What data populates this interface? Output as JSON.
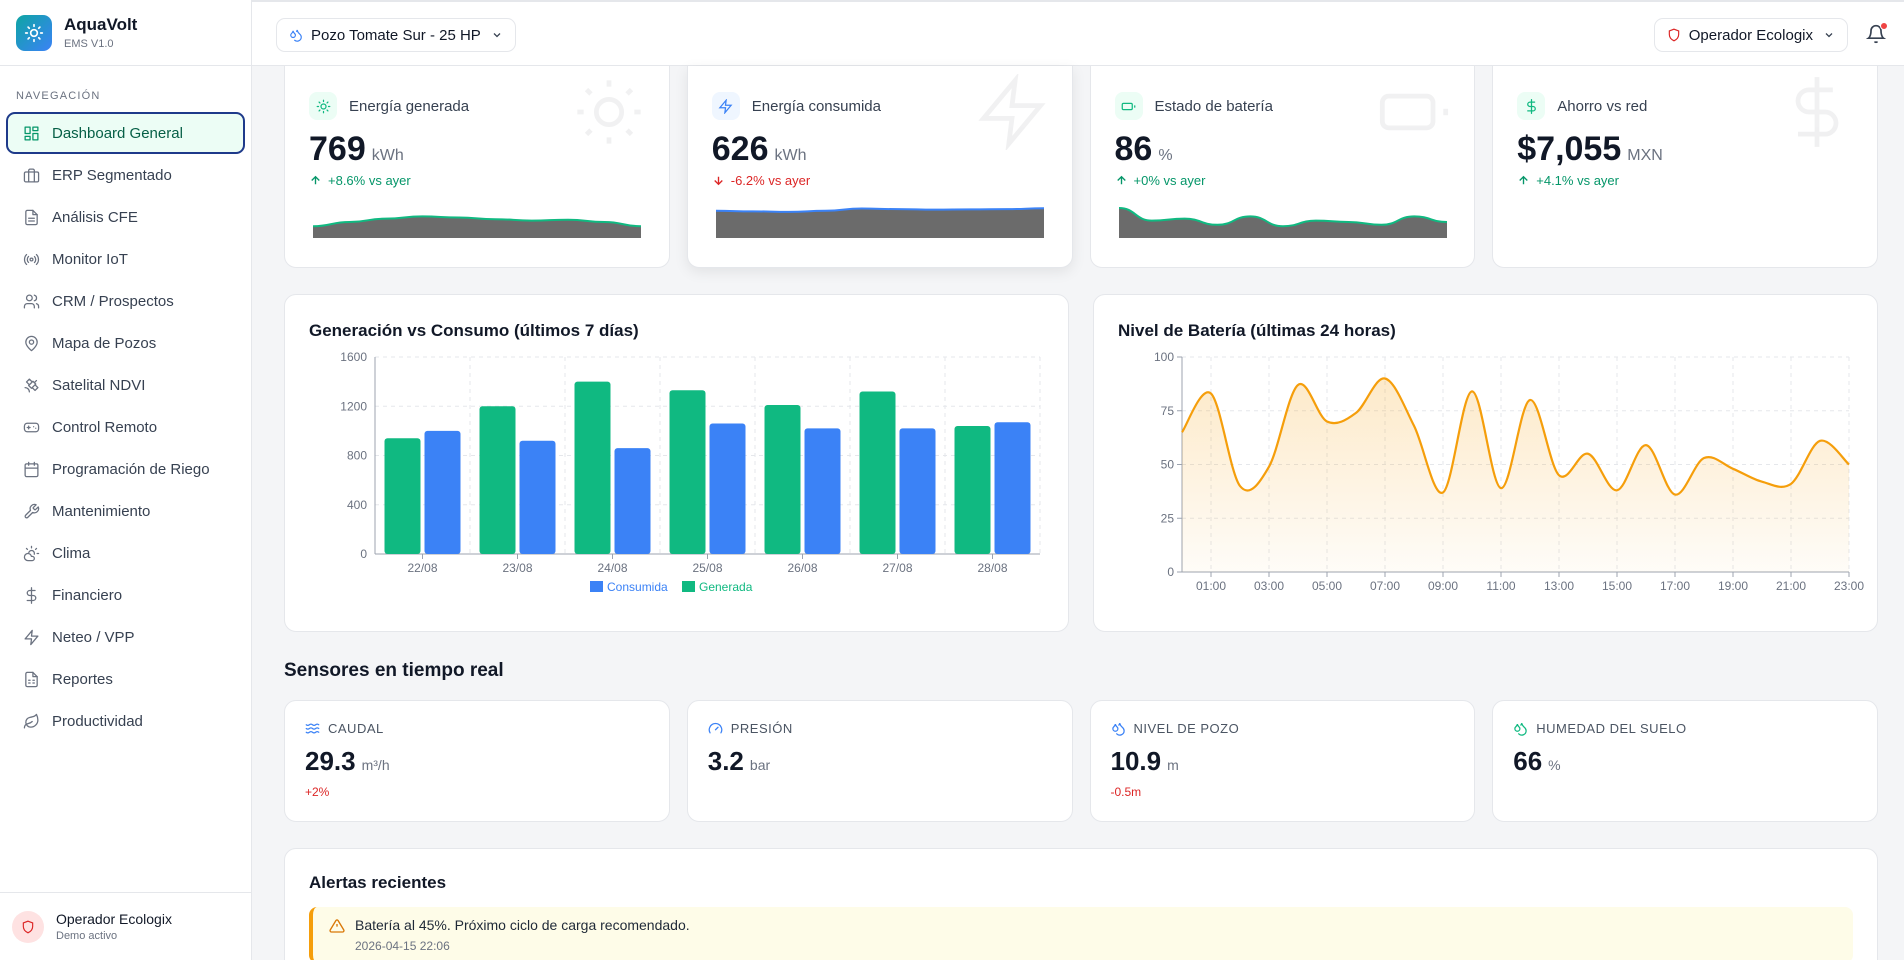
{
  "app": {
    "name": "AquaVolt",
    "version": "EMS V1.0"
  },
  "sidebar": {
    "section": "NAVEGACIÓN",
    "items": [
      {
        "label": "Dashboard General",
        "icon": "dashboard-icon"
      },
      {
        "label": "ERP Segmentado",
        "icon": "briefcase-icon"
      },
      {
        "label": "Análisis CFE",
        "icon": "document-icon"
      },
      {
        "label": "Monitor IoT",
        "icon": "radio-icon"
      },
      {
        "label": "CRM / Prospectos",
        "icon": "users-icon"
      },
      {
        "label": "Mapa de Pozos",
        "icon": "map-pin-icon"
      },
      {
        "label": "Satelital NDVI",
        "icon": "satellite-icon"
      },
      {
        "label": "Control Remoto",
        "icon": "gamepad-icon"
      },
      {
        "label": "Programación de Riego",
        "icon": "calendar-icon"
      },
      {
        "label": "Mantenimiento",
        "icon": "wrench-icon"
      },
      {
        "label": "Clima",
        "icon": "cloud-sun-icon"
      },
      {
        "label": "Financiero",
        "icon": "dollar-icon"
      },
      {
        "label": "Neteo / VPP",
        "icon": "bolt-icon"
      },
      {
        "label": "Reportes",
        "icon": "report-icon"
      },
      {
        "label": "Productividad",
        "icon": "leaf-icon"
      }
    ],
    "footer": {
      "name": "Operador Ecologix",
      "status": "Demo activo"
    }
  },
  "topbar": {
    "well": "Pozo Tomate Sur - 25 HP",
    "operator": "Operador Ecologix"
  },
  "kpis": [
    {
      "title": "Energía generada",
      "value": "769",
      "unit": "kWh",
      "delta": "+8.6% vs ayer",
      "trend": "up",
      "spark": [
        0.35,
        0.5,
        0.62,
        0.7,
        0.66,
        0.6,
        0.55,
        0.58,
        0.5,
        0.35
      ]
    },
    {
      "title": "Energía consumida",
      "value": "626",
      "unit": "kWh",
      "delta": "-6.2% vs ayer",
      "trend": "down",
      "spark": [
        0.9,
        0.88,
        0.86,
        0.9,
        0.98,
        0.96,
        0.94,
        0.95,
        0.96,
        0.99
      ]
    },
    {
      "title": "Estado de batería",
      "value": "86",
      "unit": "%",
      "delta": "+0% vs ayer",
      "trend": "up",
      "spark": [
        1.0,
        0.55,
        0.62,
        0.4,
        0.7,
        0.35,
        0.55,
        0.5,
        0.4,
        0.7,
        0.5
      ]
    },
    {
      "title": "Ahorro vs red",
      "value": "$7,055",
      "unit": "MXN",
      "delta": "+4.1% vs ayer",
      "trend": "up",
      "spark": []
    }
  ],
  "bar_chart": {
    "title": "Generación vs Consumo (últimos 7 días)",
    "chart_data": {
      "type": "bar",
      "categories": [
        "22/08",
        "23/08",
        "24/08",
        "25/08",
        "26/08",
        "27/08",
        "28/08"
      ],
      "series": [
        {
          "name": "Generada",
          "color": "#10b981",
          "values": [
            940,
            1200,
            1400,
            1330,
            1210,
            1320,
            1040
          ]
        },
        {
          "name": "Consumida",
          "color": "#3b82f6",
          "values": [
            1000,
            920,
            860,
            1060,
            1020,
            1020,
            1070
          ]
        }
      ],
      "ylim": [
        0,
        1600
      ],
      "yticks": [
        0,
        400,
        800,
        1200,
        1600
      ],
      "legend": "bottom"
    }
  },
  "line_chart": {
    "title": "Nivel de Batería (últimas 24 horas)",
    "chart_data": {
      "type": "area",
      "x": [
        "00:00",
        "01:00",
        "02:00",
        "03:00",
        "04:00",
        "05:00",
        "06:00",
        "07:00",
        "08:00",
        "09:00",
        "10:00",
        "11:00",
        "12:00",
        "13:00",
        "14:00",
        "15:00",
        "16:00",
        "17:00",
        "18:00",
        "19:00",
        "20:00",
        "21:00",
        "22:00",
        "23:00"
      ],
      "xticks": [
        "01:00",
        "03:00",
        "05:00",
        "07:00",
        "09:00",
        "11:00",
        "13:00",
        "15:00",
        "17:00",
        "19:00",
        "21:00",
        "23:00"
      ],
      "values": [
        65,
        83,
        40,
        49,
        87,
        70,
        74,
        90,
        68,
        37,
        84,
        39,
        80,
        45,
        55,
        38,
        59,
        36,
        53,
        48,
        42,
        41,
        61,
        50
      ],
      "color": "#f59e0b",
      "ylim": [
        0,
        100
      ],
      "yticks": [
        0,
        25,
        50,
        75,
        100
      ]
    }
  },
  "sensors_title": "Sensores en tiempo real",
  "sensors": [
    {
      "label": "CAUDAL",
      "value": "29.3",
      "unit": "m³/h",
      "delta": "+2%"
    },
    {
      "label": "PRESIÓN",
      "value": "3.2",
      "unit": "bar",
      "delta": ""
    },
    {
      "label": "NIVEL DE POZO",
      "value": "10.9",
      "unit": "m",
      "delta": "-0.5m"
    },
    {
      "label": "HUMEDAD DEL SUELO",
      "value": "66",
      "unit": "%",
      "delta": ""
    }
  ],
  "alerts": {
    "title": "Alertas recientes",
    "items": [
      {
        "text": "Batería al 45%. Próximo ciclo de carga recomendado.",
        "time": "2026-04-15 22:06"
      }
    ]
  }
}
